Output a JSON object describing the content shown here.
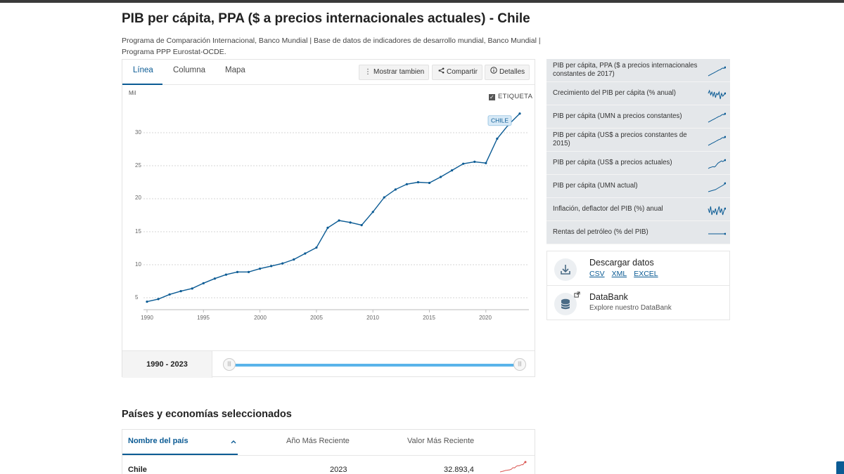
{
  "page": {
    "title": "PIB per cápita, PPA ($ a precios internacionales actuales) - Chile",
    "sources_line1": "Programa de Comparación Internacional, Banco Mundial | Base de datos de indicadores de desarrollo mundial, Banco Mundial |",
    "sources_line2": "Programa PPP Eurostat-OCDE."
  },
  "tabs": [
    {
      "label": "Línea",
      "active": true
    },
    {
      "label": "Columna",
      "active": false
    },
    {
      "label": "Mapa",
      "active": false
    }
  ],
  "toolbar": {
    "show_also": "Mostrar tambien",
    "share": "Compartir",
    "details": "Detalles"
  },
  "chart_controls": {
    "unit": "Mil",
    "label_toggle": "ETIQUETA",
    "label_checked": true,
    "range_label": "1990 - 2023"
  },
  "chart_data": {
    "type": "line",
    "title": "",
    "xlabel": "",
    "ylabel": "Mil",
    "xlim": [
      1990,
      2023
    ],
    "ylim": [
      3,
      33
    ],
    "x_ticks": [
      "1990",
      "1995",
      "2000",
      "2005",
      "2010",
      "2015",
      "2020"
    ],
    "y_ticks": [
      "5",
      "10",
      "15",
      "20",
      "25",
      "30"
    ],
    "series": [
      {
        "name": "CHILE",
        "color": "#0b5b94",
        "x": [
          1990,
          1991,
          1992,
          1993,
          1994,
          1995,
          1996,
          1997,
          1998,
          1999,
          2000,
          2001,
          2002,
          2003,
          2004,
          2005,
          2006,
          2007,
          2008,
          2009,
          2010,
          2011,
          2012,
          2013,
          2014,
          2015,
          2016,
          2017,
          2018,
          2019,
          2020,
          2021,
          2022,
          2023
        ],
        "y": [
          4.4,
          4.8,
          5.5,
          6.0,
          6.4,
          7.2,
          7.9,
          8.5,
          8.9,
          8.9,
          9.4,
          9.8,
          10.2,
          10.8,
          11.7,
          12.6,
          15.6,
          16.7,
          16.4,
          16.0,
          18.0,
          20.2,
          21.4,
          22.2,
          22.5,
          22.4,
          23.3,
          24.3,
          25.3,
          25.6,
          25.4,
          29.1,
          31.2,
          32.9
        ]
      }
    ],
    "grid": true,
    "legend": "data label at end of line"
  },
  "indicators": [
    {
      "label": "PIB per cápita, PPA ($ a precios internacionales constantes de 2017)",
      "spark": [
        1,
        2,
        3,
        4,
        5,
        6,
        7,
        8,
        9,
        10,
        10.5,
        12,
        13,
        12.5,
        14
      ]
    },
    {
      "label": "Crecimiento del PIB per cápita (% anual)",
      "spark": [
        5,
        7,
        4,
        6,
        3,
        6,
        2,
        5,
        4,
        6,
        1,
        5,
        3,
        4,
        5
      ]
    },
    {
      "label": "PIB per cápita (UMN a precios constantes)",
      "spark": [
        1,
        2,
        3,
        4,
        5,
        6,
        7,
        8,
        9,
        10,
        10.5,
        12,
        13,
        12.5,
        14
      ]
    },
    {
      "label": "PIB per cápita (US$ a precios constantes de 2015)",
      "spark": [
        1,
        2,
        3,
        4,
        5,
        6,
        7,
        8,
        9,
        10,
        10.5,
        12,
        13,
        12.5,
        14
      ]
    },
    {
      "label": "PIB per cápita (US$ a precios actuales)",
      "spark": [
        1,
        2,
        2.5,
        3,
        3.5,
        3,
        4,
        6,
        8,
        9,
        10,
        11,
        10,
        11,
        12
      ]
    },
    {
      "label": "PIB per cápita (UMN actual)",
      "spark": [
        1,
        1.5,
        2,
        2.5,
        3,
        3.5,
        4,
        5,
        6,
        7,
        8,
        9,
        10,
        11,
        13
      ]
    },
    {
      "label": "Inflación, deflactor del PIB (%) anual",
      "spark": [
        6,
        4,
        7,
        3,
        5,
        4,
        6,
        3,
        5,
        7,
        4,
        6,
        3,
        5,
        6
      ]
    },
    {
      "label": "Rentas del petróleo (% del PIB)",
      "spark": [
        2,
        2,
        2,
        2,
        2,
        2,
        2,
        2,
        2,
        2,
        2,
        2,
        2,
        2,
        2
      ]
    }
  ],
  "download": {
    "title": "Descargar datos",
    "links": [
      "CSV",
      "XML",
      "EXCEL"
    ]
  },
  "databank": {
    "title": "DataBank",
    "subtitle": "Explore nuestro DataBank"
  },
  "table": {
    "section_title": "Países y economías seleccionados",
    "headers": [
      "Nombre del país",
      "Año Más Reciente",
      "Valor Más Reciente"
    ],
    "rows": [
      {
        "country": "Chile",
        "year": "2023",
        "value": "32.893,4"
      }
    ]
  },
  "colors": {
    "accent": "#0b5b94",
    "slider": "#5ab4ea",
    "spark_red": "#d9534f"
  }
}
